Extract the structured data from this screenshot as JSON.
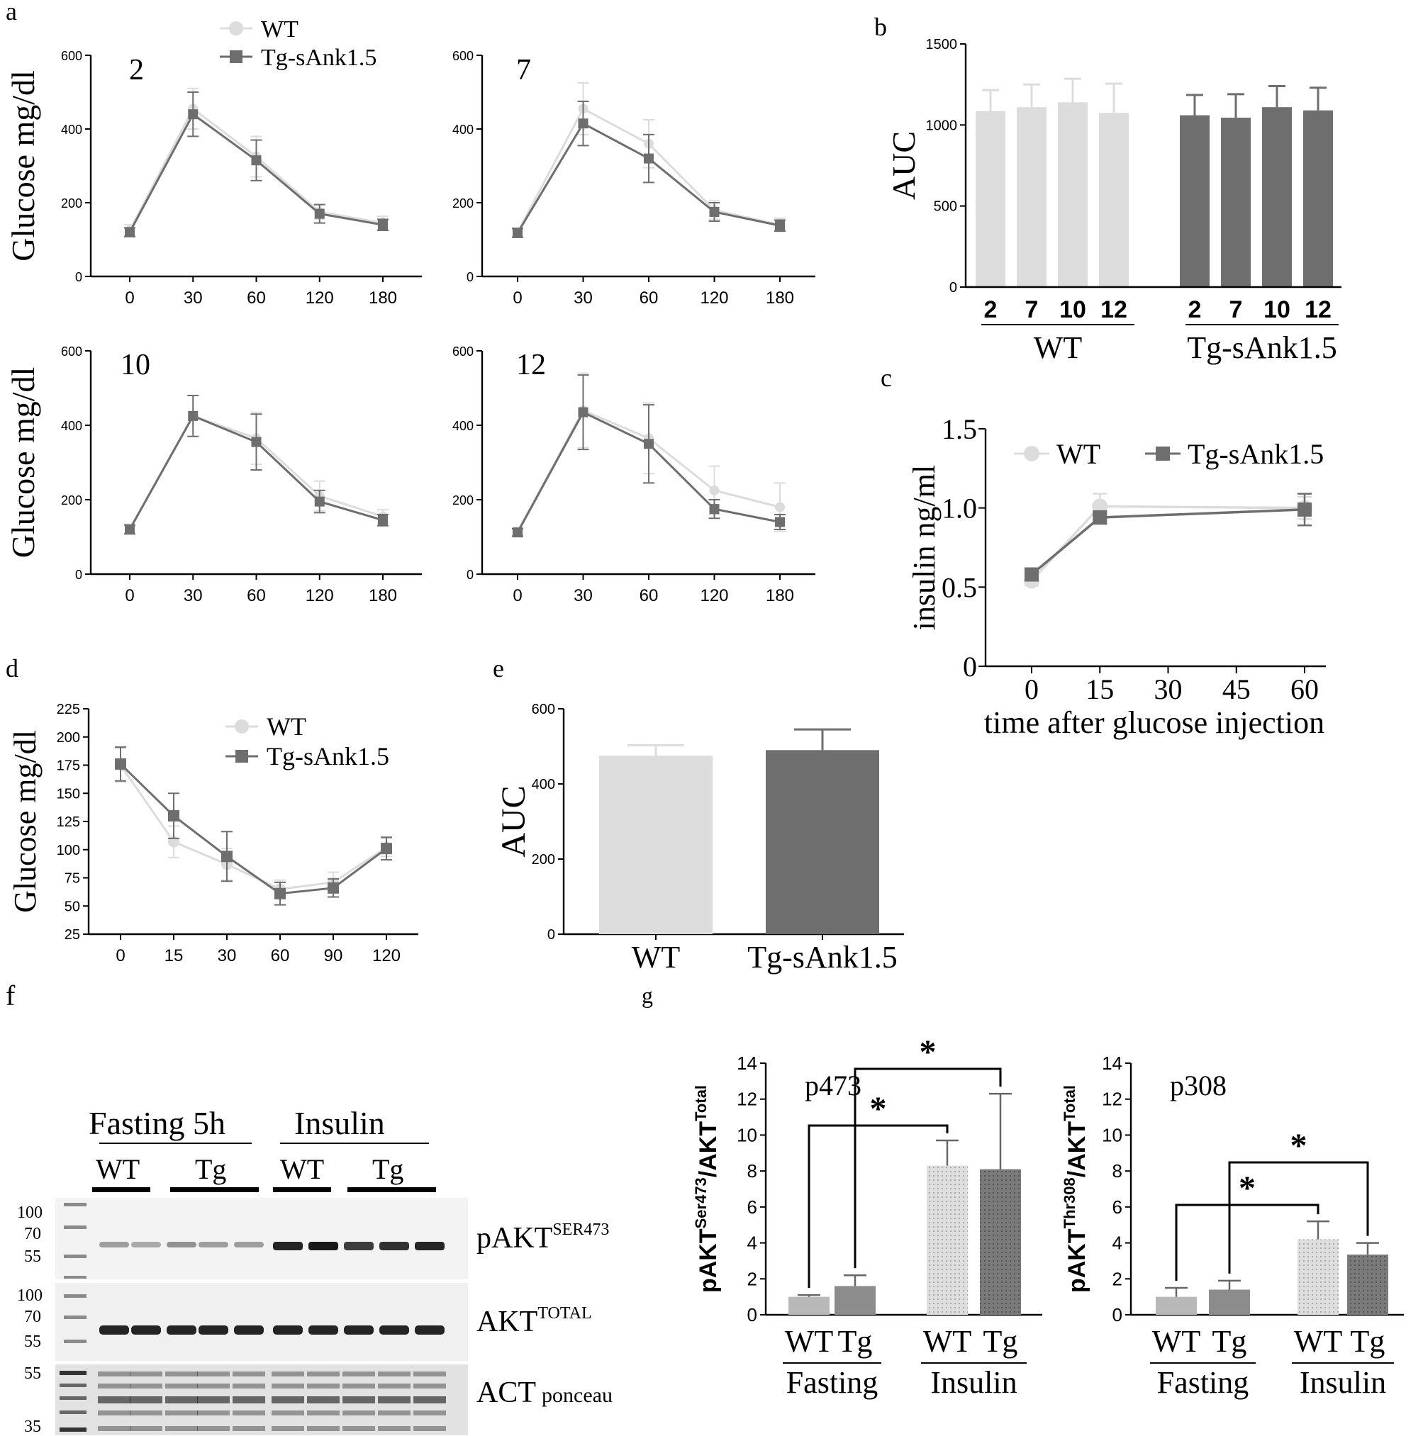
{
  "colors": {
    "wt": "#dcdcdc",
    "tg": "#6e6e6e",
    "axis": "#000000"
  },
  "figure": {
    "panel_labels": {
      "a": "a",
      "b": "b",
      "c": "c",
      "d": "d",
      "e": "e",
      "f": "f",
      "g": "g"
    },
    "blot": {
      "group_labels": [
        "Fasting 5h",
        "Insulin"
      ],
      "lane_labels": [
        "WT",
        "Tg",
        "WT",
        "Tg"
      ],
      "markers_top": [
        "100",
        "70",
        "55"
      ],
      "markers_mid": [
        "100",
        "70",
        "55"
      ],
      "markers_bottom": [
        "55",
        "35"
      ],
      "rows": [
        {
          "name": "pAKT",
          "sup": "SER473",
          "sub": ""
        },
        {
          "name": "AKT",
          "sup": "TOTAL",
          "sub": ""
        },
        {
          "name": "ACT",
          "sup": "",
          "sub": "ponceau"
        }
      ]
    }
  },
  "chart_data": [
    {
      "panel": "a",
      "type": "line",
      "inset": "2",
      "ylabel": "Glucose mg/dl",
      "x": [
        "0",
        "30",
        "60",
        "120",
        "180"
      ],
      "ylim": [
        0,
        600
      ],
      "yticks": [
        0,
        200,
        400,
        600
      ],
      "legend": [
        "WT",
        "Tg-sAnk1.5"
      ],
      "series": [
        {
          "name": "WT",
          "values": [
            125,
            455,
            325,
            175,
            145
          ],
          "errors": [
            15,
            55,
            55,
            20,
            18
          ]
        },
        {
          "name": "Tg-sAnk1.5",
          "values": [
            120,
            440,
            315,
            170,
            140
          ],
          "errors": [
            12,
            60,
            55,
            25,
            15
          ]
        }
      ]
    },
    {
      "panel": "a",
      "type": "line",
      "inset": "7",
      "ylabel": "",
      "x": [
        "0",
        "30",
        "60",
        "120",
        "180"
      ],
      "ylim": [
        0,
        600
      ],
      "yticks": [
        0,
        200,
        400,
        600
      ],
      "series": [
        {
          "name": "WT",
          "values": [
            120,
            455,
            360,
            180,
            140
          ],
          "errors": [
            12,
            70,
            65,
            25,
            18
          ]
        },
        {
          "name": "Tg-sAnk1.5",
          "values": [
            118,
            415,
            320,
            175,
            138
          ],
          "errors": [
            12,
            60,
            65,
            25,
            15
          ]
        }
      ]
    },
    {
      "panel": "a",
      "type": "line",
      "inset": "10",
      "ylabel": "Glucose mg/dl",
      "x": [
        "0",
        "30",
        "60",
        "120",
        "180"
      ],
      "ylim": [
        0,
        600
      ],
      "yticks": [
        0,
        200,
        400,
        600
      ],
      "series": [
        {
          "name": "WT",
          "values": [
            122,
            425,
            365,
            210,
            155
          ],
          "errors": [
            12,
            55,
            70,
            40,
            18
          ]
        },
        {
          "name": "Tg-sAnk1.5",
          "values": [
            120,
            425,
            355,
            195,
            145
          ],
          "errors": [
            12,
            55,
            75,
            30,
            15
          ]
        }
      ]
    },
    {
      "panel": "a",
      "type": "line",
      "inset": "12",
      "ylabel": "",
      "x": [
        "0",
        "30",
        "60",
        "120",
        "180"
      ],
      "ylim": [
        0,
        600
      ],
      "yticks": [
        0,
        200,
        400,
        600
      ],
      "series": [
        {
          "name": "WT",
          "values": [
            115,
            440,
            365,
            225,
            180
          ],
          "errors": [
            10,
            100,
            95,
            65,
            65
          ]
        },
        {
          "name": "Tg-sAnk1.5",
          "values": [
            112,
            435,
            350,
            175,
            140
          ],
          "errors": [
            10,
            100,
            105,
            25,
            20
          ]
        }
      ]
    },
    {
      "panel": "b",
      "type": "bar",
      "ylabel": "AUC",
      "ylim": [
        0,
        1500
      ],
      "yticks": [
        0,
        500,
        1000,
        1500
      ],
      "groups": [
        {
          "name": "WT",
          "categories": [
            "2",
            "7",
            "10",
            "12"
          ],
          "values": [
            1085,
            1110,
            1140,
            1075
          ],
          "errors": [
            130,
            140,
            145,
            180
          ]
        },
        {
          "name": "Tg-sAnk1.5",
          "categories": [
            "2",
            "7",
            "10",
            "12"
          ],
          "values": [
            1060,
            1045,
            1110,
            1090
          ],
          "errors": [
            125,
            145,
            130,
            140
          ]
        }
      ]
    },
    {
      "panel": "c",
      "type": "line",
      "ylabel": "insulin ng/ml",
      "xlabel": "time after glucose injection",
      "x": [
        0,
        15,
        60
      ],
      "xticks": [
        "0",
        "15",
        "30",
        "45",
        "60"
      ],
      "xlim": [
        0,
        60
      ],
      "ylim": [
        0,
        1.5
      ],
      "yticks": [
        "0",
        "0.5",
        "1.0",
        "1.5"
      ],
      "legend": [
        "WT",
        "Tg-sAnk1.5"
      ],
      "series": [
        {
          "name": "WT",
          "values": [
            0.54,
            1.01,
            1.0
          ],
          "errors": [
            0.03,
            0.08,
            0.07
          ]
        },
        {
          "name": "Tg-sAnk1.5",
          "values": [
            0.58,
            0.94,
            0.99
          ],
          "errors": [
            0.03,
            0.04,
            0.1
          ]
        }
      ]
    },
    {
      "panel": "d",
      "type": "line",
      "ylabel": "Glucose mg/dl",
      "x": [
        "0",
        "15",
        "30",
        "60",
        "90",
        "120"
      ],
      "ylim": [
        25,
        225
      ],
      "yticks": [
        25,
        50,
        75,
        100,
        125,
        150,
        175,
        200,
        225
      ],
      "legend": [
        "WT",
        "Tg-sAnk1.5"
      ],
      "series": [
        {
          "name": "WT",
          "values": [
            175,
            107,
            87,
            65,
            71,
            102
          ],
          "errors": [
            15,
            14,
            14,
            8,
            9,
            8
          ]
        },
        {
          "name": "Tg-sAnk1.5",
          "values": [
            176,
            130,
            94,
            61,
            66,
            101
          ],
          "errors": [
            15,
            20,
            22,
            10,
            8,
            10
          ]
        }
      ]
    },
    {
      "panel": "e",
      "type": "bar",
      "ylabel": "AUC",
      "categories": [
        "WT",
        "Tg-sAnk1.5"
      ],
      "values": [
        475,
        490
      ],
      "errors": [
        28,
        55
      ],
      "ylim": [
        0,
        600
      ],
      "yticks": [
        0,
        200,
        400,
        600
      ]
    },
    {
      "panel": "g",
      "type": "bar",
      "title": "p473",
      "ylabel": {
        "prefix": "pAKT",
        "sup1": "Ser473",
        "mid": "/AKT",
        "sup2": "Total"
      },
      "categories": [
        "WT",
        "Tg",
        "WT",
        "Tg"
      ],
      "groups": [
        "Fasting",
        "Insulin"
      ],
      "values": [
        1.0,
        1.6,
        8.3,
        8.1
      ],
      "errors": [
        0.1,
        0.6,
        1.4,
        4.2
      ],
      "ylim": [
        0,
        14
      ],
      "yticks": [
        0,
        2,
        4,
        6,
        8,
        10,
        12,
        14
      ],
      "significance": [
        "*",
        "*"
      ]
    },
    {
      "panel": "g",
      "type": "bar",
      "title": "p308",
      "ylabel": {
        "prefix": "pAKT",
        "sup1": "Thr308",
        "mid": "/AKT",
        "sup2": "Total"
      },
      "categories": [
        "WT",
        "Tg",
        "WT",
        "Tg"
      ],
      "groups": [
        "Fasting",
        "Insulin"
      ],
      "values": [
        1.0,
        1.4,
        4.2,
        3.35
      ],
      "errors": [
        0.5,
        0.5,
        1.0,
        0.65
      ],
      "ylim": [
        0,
        14
      ],
      "yticks": [
        0,
        2,
        4,
        6,
        8,
        10,
        12,
        14
      ],
      "significance": [
        "*",
        "*"
      ]
    }
  ]
}
